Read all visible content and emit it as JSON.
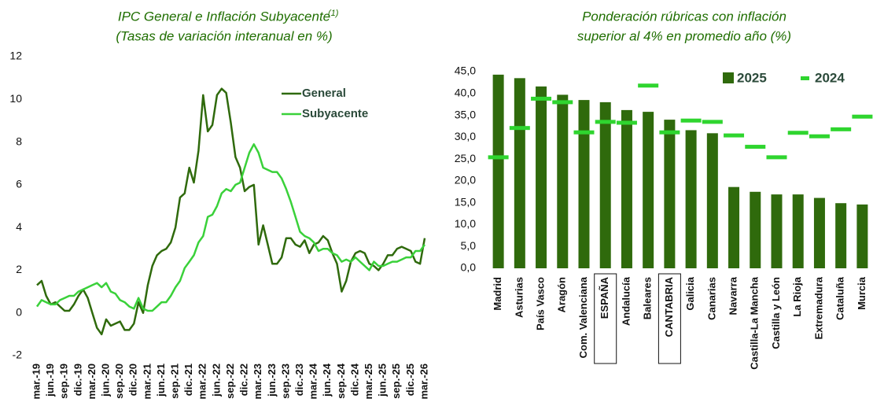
{
  "chart_data": [
    {
      "type": "line",
      "title": "IPC General e Inflación Subyacente",
      "title_note": "(1)",
      "subtitle": "(Tasas de variación interanual en %)",
      "categories": [
        "mar.-19",
        null,
        null,
        "jun.-19",
        null,
        null,
        "sep.-19",
        null,
        null,
        "dic.-19",
        null,
        null,
        "mar.-20",
        null,
        null,
        "jun.-20",
        null,
        null,
        "sep.-20",
        null,
        null,
        "dic.-20",
        null,
        null,
        "mar.-21",
        null,
        null,
        "jun.-21",
        null,
        null,
        "sep.-21",
        null,
        null,
        "dic.-21",
        null,
        null,
        "mar.-22",
        null,
        null,
        "jun.-22",
        null,
        null,
        "sep.-22",
        null,
        null,
        "dic.-22",
        null,
        null,
        "mar.-23",
        null,
        null,
        "jun.-23",
        null,
        null,
        "sep.-23",
        null,
        null,
        "dic.-23",
        null,
        null,
        "mar.-24",
        null,
        null,
        "jun.-24",
        null,
        null,
        "sep.-24",
        null,
        null,
        "dic.-24",
        null,
        null,
        "mar.-25",
        null,
        null,
        "jun.-25",
        null,
        null,
        "sep.-25",
        null,
        null,
        "dic.-25",
        null,
        null,
        "mar.-26"
      ],
      "series": [
        {
          "name": "General",
          "color": "#2f6a0c",
          "values": [
            1.3,
            1.5,
            0.8,
            0.4,
            0.5,
            0.3,
            0.1,
            0.1,
            0.4,
            0.8,
            1.1,
            0.7,
            0.0,
            -0.7,
            -1.0,
            -0.3,
            -0.6,
            -0.5,
            -0.4,
            -0.8,
            -0.8,
            -0.5,
            0.5,
            0.0,
            1.3,
            2.2,
            2.7,
            2.9,
            3.0,
            3.3,
            4.0,
            5.4,
            5.6,
            6.8,
            6.1,
            7.6,
            10.2,
            8.5,
            8.8,
            10.2,
            10.5,
            10.3,
            8.9,
            7.3,
            6.8,
            5.7,
            5.9,
            6.0,
            3.2,
            4.1,
            3.2,
            2.3,
            2.3,
            2.6,
            3.5,
            3.5,
            3.2,
            3.1,
            3.4,
            2.8,
            3.2,
            3.3,
            3.6,
            3.4,
            2.8,
            2.3,
            1.0,
            1.5,
            2.4,
            2.8,
            2.9,
            2.8,
            2.3,
            2.2,
            2.0,
            2.3,
            2.7,
            2.7,
            3.0,
            3.1,
            3.0,
            2.9,
            2.4,
            2.3,
            3.5
          ]
        },
        {
          "name": "Subyacente",
          "color": "#3ad13a",
          "values": [
            0.3,
            0.6,
            0.5,
            0.4,
            0.4,
            0.6,
            0.7,
            0.8,
            0.8,
            1.0,
            1.1,
            1.2,
            1.3,
            1.4,
            1.2,
            1.4,
            1.0,
            0.9,
            0.6,
            0.5,
            0.3,
            0.2,
            0.7,
            0.2,
            0.1,
            0.1,
            0.3,
            0.5,
            0.5,
            0.8,
            1.2,
            1.5,
            2.1,
            2.4,
            2.7,
            3.3,
            3.6,
            4.5,
            4.6,
            5.0,
            5.6,
            5.8,
            5.7,
            6.0,
            6.1,
            6.8,
            7.5,
            7.9,
            7.5,
            6.8,
            6.7,
            6.6,
            6.6,
            6.3,
            5.8,
            5.2,
            4.5,
            3.8,
            3.6,
            3.5,
            3.3,
            2.9,
            3.0,
            3.0,
            2.8,
            2.7,
            2.4,
            2.5,
            2.4,
            2.6,
            2.4,
            2.2,
            2.0,
            2.4,
            2.2,
            2.2,
            2.3,
            2.4,
            2.4,
            2.5,
            2.6,
            2.6,
            2.9,
            2.9,
            3.2
          ]
        }
      ],
      "ylim": [
        -2,
        12
      ],
      "yticks": [
        -2,
        0,
        2,
        4,
        6,
        8,
        10,
        12
      ]
    },
    {
      "type": "bar",
      "title": "Ponderación rúbricas con inflación",
      "subtitle": "superior al 4% en promedio año (%)",
      "categories": [
        "Madrid",
        "Asturias",
        "País Vasco",
        "Aragón",
        "Com. Valenciana",
        "ESPAÑA",
        "Andalucía",
        "Baleares",
        "CANTABRIA",
        "Galicia",
        "Canarias",
        "Navarra",
        "Castilla-La Mancha",
        "Castilla y León",
        "La Rioja",
        "Extremadura",
        "Cataluña",
        "Murcia"
      ],
      "highlight": [
        5,
        8
      ],
      "series": [
        {
          "name": "2025",
          "color": "#2f6a0c",
          "values": [
            44.3,
            43.5,
            41.6,
            39.7,
            38.5,
            38.0,
            36.2,
            35.8,
            34.0,
            31.6,
            30.9,
            18.6,
            17.5,
            16.9,
            16.9,
            16.1,
            14.9,
            14.6
          ]
        },
        {
          "name": "2024",
          "color": "#2fd52f",
          "values": [
            25.4,
            32.1,
            38.8,
            38.0,
            31.1,
            33.5,
            33.3,
            41.8,
            31.1,
            33.8,
            33.5,
            30.4,
            27.8,
            25.4,
            31.0,
            30.2,
            31.8,
            34.7
          ]
        }
      ],
      "ylim": [
        0,
        45
      ],
      "yticks": [
        {
          "value": 0,
          "label": "0,0"
        },
        {
          "value": 5,
          "label": "5,0"
        },
        {
          "value": 10,
          "label": "10,0"
        },
        {
          "value": 15,
          "label": "15,0"
        },
        {
          "value": 20,
          "label": "20,0"
        },
        {
          "value": 25,
          "label": "25,0"
        },
        {
          "value": 30,
          "label": "30,0"
        },
        {
          "value": 35,
          "label": "35,0"
        },
        {
          "value": 40,
          "label": "40,0"
        },
        {
          "value": 45,
          "label": "45,0"
        }
      ]
    }
  ]
}
